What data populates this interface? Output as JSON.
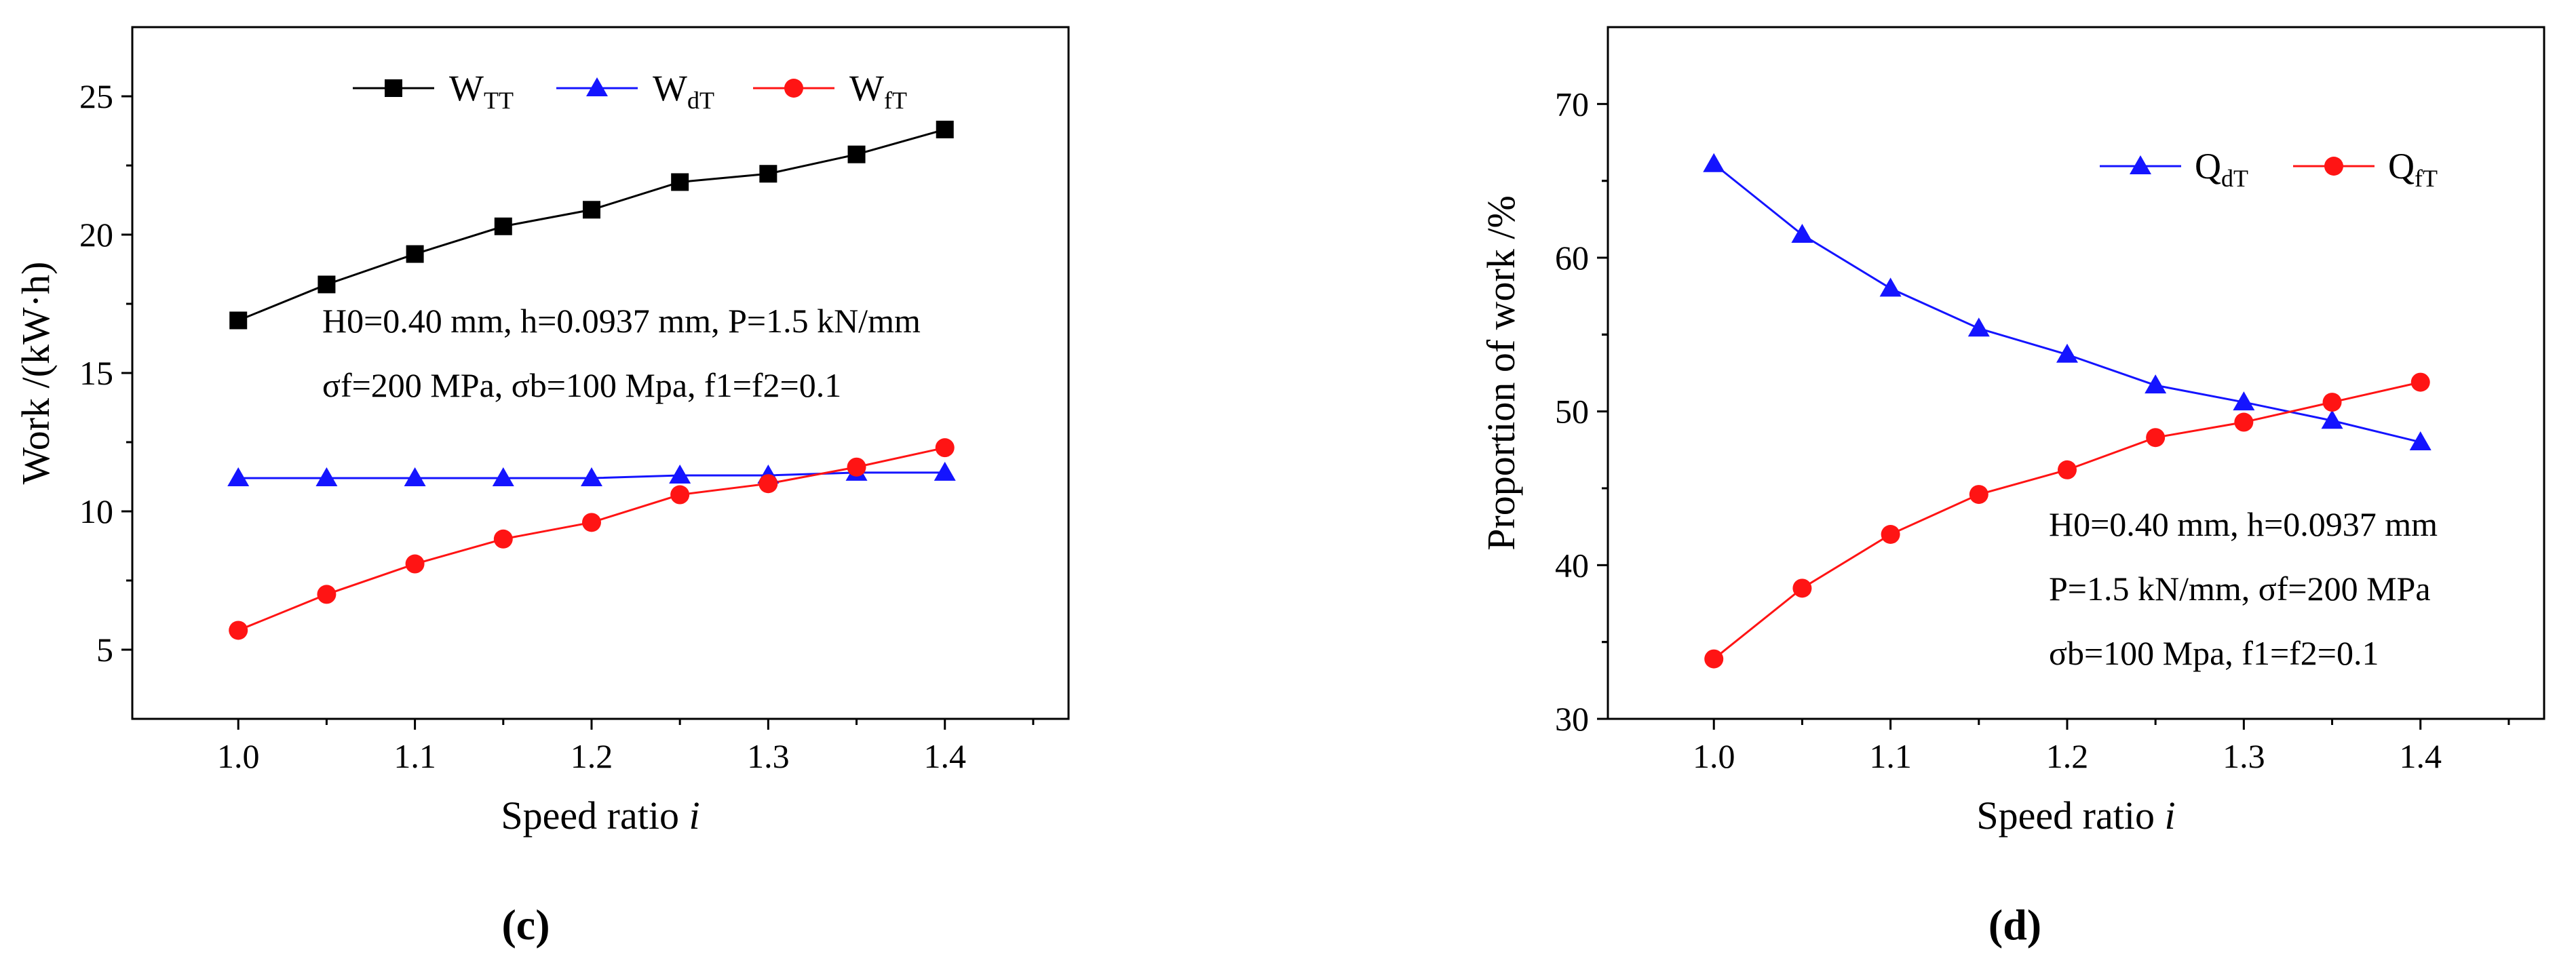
{
  "chart_data": [
    {
      "panel": "c",
      "type": "line",
      "x": [
        1.0,
        1.05,
        1.1,
        1.15,
        1.2,
        1.25,
        1.3,
        1.35,
        1.4
      ],
      "series": [
        {
          "name": "W",
          "subscript": "TT",
          "color": "#000000",
          "marker": "square",
          "values": [
            16.9,
            18.2,
            19.3,
            20.3,
            20.9,
            21.9,
            22.2,
            22.9,
            23.8
          ]
        },
        {
          "name": "W",
          "subscript": "dT",
          "color": "#1414ff",
          "marker": "triangle",
          "values": [
            11.2,
            11.2,
            11.2,
            11.2,
            11.2,
            11.3,
            11.3,
            11.4,
            11.4
          ]
        },
        {
          "name": "W",
          "subscript": "fT",
          "color": "#ff1414",
          "marker": "circle",
          "values": [
            5.7,
            7.0,
            8.1,
            9.0,
            9.6,
            10.6,
            11.0,
            11.6,
            12.3
          ]
        }
      ],
      "xlim": [
        0.94,
        1.47
      ],
      "ylim": [
        2.5,
        27.5
      ],
      "xticks": [
        "1.0",
        "1.1",
        "1.2",
        "1.3",
        "1.4"
      ],
      "yticks": [
        "5",
        "10",
        "15",
        "20",
        "25"
      ],
      "xlabel": "Speed ratio ",
      "xlabel_var": "i",
      "ylabel": "Work /(kW·h)",
      "annotation_line1": "H0=0.40 mm, h=0.0937 mm, P=1.5 kN/mm",
      "annotation_line2": "σf=200 MPa, σb=100 Mpa, f1=f2=0.1",
      "legend_position": "top",
      "panel_label": "(c)"
    },
    {
      "panel": "d",
      "type": "line",
      "x": [
        1.0,
        1.05,
        1.1,
        1.15,
        1.2,
        1.25,
        1.3,
        1.35,
        1.4
      ],
      "series": [
        {
          "name": "Q",
          "subscript": "dT",
          "color": "#1414ff",
          "marker": "triangle",
          "values": [
            66.1,
            61.5,
            58.0,
            55.4,
            53.7,
            51.7,
            50.6,
            49.4,
            48.0
          ]
        },
        {
          "name": "Q",
          "subscript": "fT",
          "color": "#ff1414",
          "marker": "circle",
          "values": [
            33.9,
            38.5,
            42.0,
            44.6,
            46.2,
            48.3,
            49.3,
            50.6,
            51.9
          ]
        }
      ],
      "xlim": [
        0.94,
        1.47
      ],
      "ylim": [
        30,
        75
      ],
      "xticks": [
        "1.0",
        "1.1",
        "1.2",
        "1.3",
        "1.4"
      ],
      "yticks": [
        "30",
        "40",
        "50",
        "60",
        "70"
      ],
      "xlabel": "Speed ratio ",
      "xlabel_var": "i",
      "ylabel": "Proportion of work /%",
      "annotation_line1": "H0=0.40 mm, h=0.0937 mm",
      "annotation_line2": "P=1.5 kN/mm, σf=200 MPa",
      "annotation_line3": "σb=100 Mpa, f1=f2=0.1",
      "legend_position": "top-right",
      "panel_label": "(d)"
    }
  ]
}
